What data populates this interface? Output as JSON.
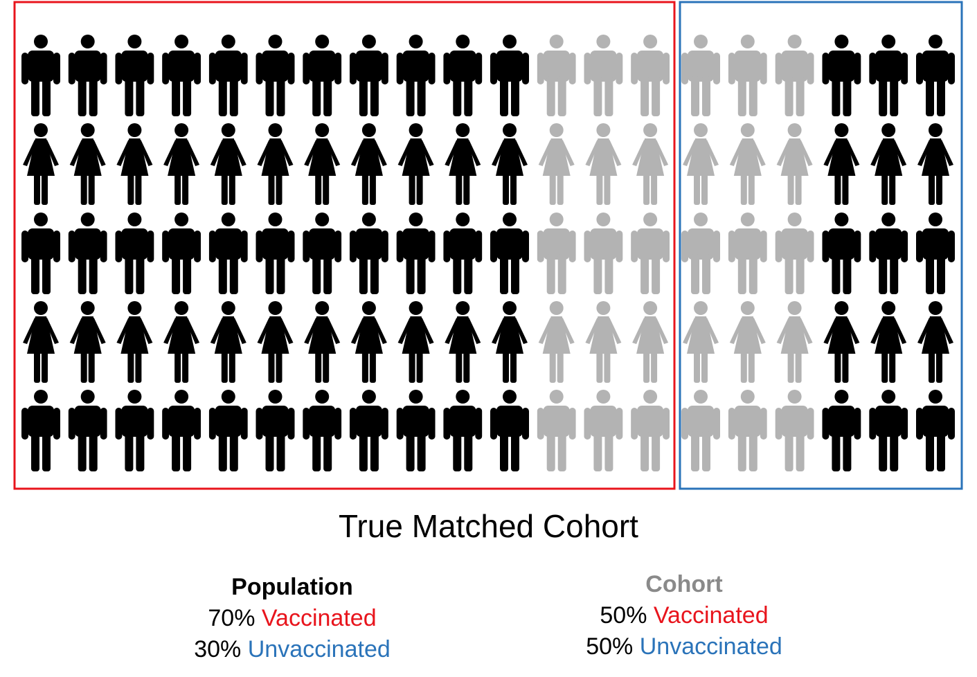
{
  "grid": {
    "rows": [
      "male",
      "female",
      "male",
      "female",
      "male"
    ],
    "columns": 20,
    "column_groups": [
      {
        "count": 11,
        "color": "#000000"
      },
      {
        "count": 6,
        "color": "#b3b3b3"
      },
      {
        "count": 3,
        "color": "#000000"
      }
    ],
    "icons": {
      "male": "person-male-icon",
      "female": "person-female-icon"
    }
  },
  "boxes": {
    "population_color": "#e8141c",
    "cohort_color": "#2a73b9"
  },
  "caption": "True Matched Cohort",
  "legend": {
    "population": {
      "heading": "Population",
      "heading_color": "#000000",
      "vaccinated_pct": "70%",
      "vaccinated_label": "Vaccinated",
      "unvaccinated_pct": "30%",
      "unvaccinated_label": "Unvaccinated"
    },
    "cohort": {
      "heading": "Cohort",
      "heading_color": "#8a8a8a",
      "vaccinated_pct": "50%",
      "vaccinated_label": "Vaccinated",
      "unvaccinated_pct": "50%",
      "unvaccinated_label": "Unvaccinated"
    },
    "vaccinated_color": "#e8141c",
    "unvaccinated_color": "#2a73b9"
  }
}
